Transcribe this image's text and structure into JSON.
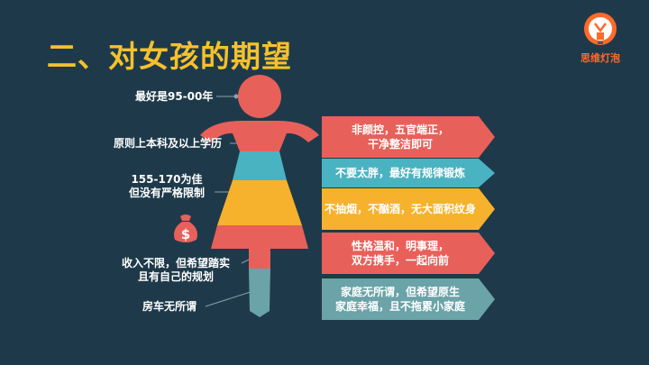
{
  "title": "二、对女孩的期望",
  "logo": {
    "text": "思维灯泡",
    "icon": "lightbulb-icon"
  },
  "left_labels": {
    "age": "最好是95-00年",
    "education": "原则上本科及以上学历",
    "height_line1": "155-170为佳",
    "height_line2": "但没有严格限制",
    "income_line1": "收入不限，但希望踏实",
    "income_line2": "且有自己的规划",
    "property": "房车无所谓"
  },
  "right_arrows": [
    {
      "line1": "非颜控，五官端正，",
      "line2": "干净整洁即可",
      "color": "#e8605a"
    },
    {
      "line1": "不要太胖，最好有规律锻炼",
      "line2": "",
      "color": "#4ab3c2"
    },
    {
      "line1": "不抽烟，不酗酒，无大面积纹身",
      "line2": "",
      "color": "#f6b22c"
    },
    {
      "line1": "性格温和，明事理，",
      "line2": "双方携手，一起向前",
      "color": "#e8605a"
    },
    {
      "line1": "家庭无所谓，但希望原生",
      "line2": "家庭幸福，且不拖累小家庭",
      "color": "#6aa3a8"
    }
  ],
  "colors": {
    "background": "#1e3a4a",
    "title": "#f6c12c",
    "red": "#e8605a",
    "teal": "#4ab3c2",
    "yellow": "#f6b22c",
    "logo": "#ff6a2a"
  },
  "money_icon": "money-bag-icon"
}
